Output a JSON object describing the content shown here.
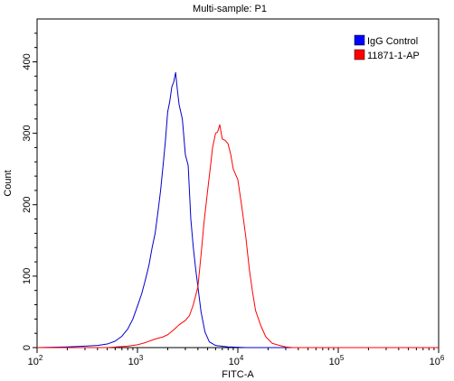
{
  "chart_data": {
    "type": "line",
    "title": "Multi-sample: P1",
    "xlabel": "FITC-A",
    "ylabel": "Count",
    "x_scale": "log",
    "xlim": [
      100,
      1000000
    ],
    "ylim": [
      0,
      460
    ],
    "x_ticks": [
      {
        "value": 100,
        "base": "10",
        "exp": "2"
      },
      {
        "value": 1000,
        "base": "10",
        "exp": "3"
      },
      {
        "value": 10000,
        "base": "10",
        "exp": "4"
      },
      {
        "value": 100000,
        "base": "10",
        "exp": "5"
      },
      {
        "value": 1000000,
        "base": "10",
        "exp": "6"
      }
    ],
    "y_ticks": [
      0,
      100,
      200,
      300,
      400
    ],
    "grid": false,
    "legend_position": "top-right",
    "series": [
      {
        "name": "IgG Control",
        "color": "#0000cc",
        "legend_color": "#0000ff",
        "points": [
          [
            100,
            0
          ],
          [
            200,
            1
          ],
          [
            300,
            2
          ],
          [
            400,
            3
          ],
          [
            500,
            5
          ],
          [
            600,
            9
          ],
          [
            700,
            16
          ],
          [
            800,
            26
          ],
          [
            900,
            40
          ],
          [
            1000,
            58
          ],
          [
            1100,
            75
          ],
          [
            1200,
            95
          ],
          [
            1300,
            115
          ],
          [
            1400,
            140
          ],
          [
            1500,
            160
          ],
          [
            1600,
            190
          ],
          [
            1700,
            220
          ],
          [
            1800,
            255
          ],
          [
            1900,
            290
          ],
          [
            2000,
            330
          ],
          [
            2100,
            345
          ],
          [
            2200,
            365
          ],
          [
            2300,
            372
          ],
          [
            2400,
            385
          ],
          [
            2500,
            360
          ],
          [
            2600,
            340
          ],
          [
            2800,
            320
          ],
          [
            3000,
            270
          ],
          [
            3200,
            255
          ],
          [
            3400,
            180
          ],
          [
            3600,
            140
          ],
          [
            3800,
            110
          ],
          [
            4000,
            85
          ],
          [
            4300,
            50
          ],
          [
            4700,
            22
          ],
          [
            5200,
            8
          ],
          [
            6000,
            3
          ],
          [
            8000,
            1
          ],
          [
            12000,
            0
          ],
          [
            1000000,
            0
          ]
        ]
      },
      {
        "name": "11871-1-AP",
        "color": "#ff0000",
        "legend_color": "#ff0000",
        "points": [
          [
            100,
            0
          ],
          [
            500,
            0
          ],
          [
            800,
            2
          ],
          [
            1000,
            4
          ],
          [
            1200,
            7
          ],
          [
            1500,
            12
          ],
          [
            1800,
            15
          ],
          [
            2000,
            18
          ],
          [
            2300,
            25
          ],
          [
            2600,
            32
          ],
          [
            3000,
            38
          ],
          [
            3300,
            45
          ],
          [
            3600,
            60
          ],
          [
            4000,
            85
          ],
          [
            4300,
            130
          ],
          [
            4600,
            175
          ],
          [
            5000,
            220
          ],
          [
            5300,
            250
          ],
          [
            5600,
            280
          ],
          [
            6000,
            300
          ],
          [
            6300,
            302
          ],
          [
            6600,
            312
          ],
          [
            7000,
            292
          ],
          [
            7500,
            290
          ],
          [
            8000,
            285
          ],
          [
            8500,
            270
          ],
          [
            9000,
            250
          ],
          [
            10000,
            235
          ],
          [
            11000,
            195
          ],
          [
            12000,
            155
          ],
          [
            13000,
            110
          ],
          [
            14000,
            78
          ],
          [
            15000,
            52
          ],
          [
            17000,
            30
          ],
          [
            19000,
            15
          ],
          [
            22000,
            6
          ],
          [
            26000,
            3
          ],
          [
            30000,
            1
          ],
          [
            35000,
            0
          ],
          [
            1000000,
            0
          ]
        ]
      }
    ]
  }
}
